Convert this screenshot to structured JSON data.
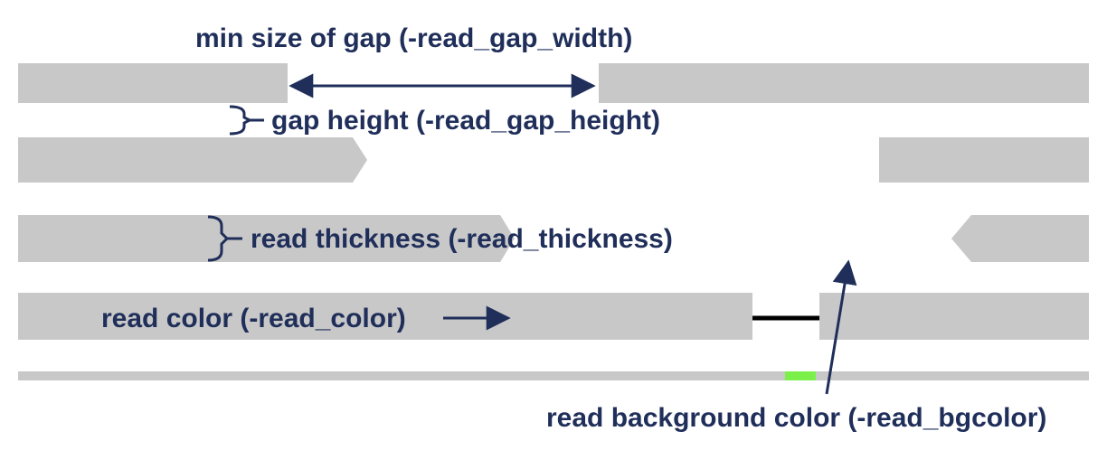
{
  "labels": {
    "gap_width": "min size of gap (-read_gap_width)",
    "gap_height": "gap height (-read_gap_height)",
    "thickness": "read thickness (-read_thickness)",
    "read_color": "read color (-read_color)",
    "bg_color": "read background color (-read_bgcolor)"
  },
  "colors": {
    "read": "#c8c8c8",
    "annotation": "#1f2f5a",
    "deletion_line": "#000000",
    "highlight": "#7cf04a",
    "background": "#ffffff"
  }
}
